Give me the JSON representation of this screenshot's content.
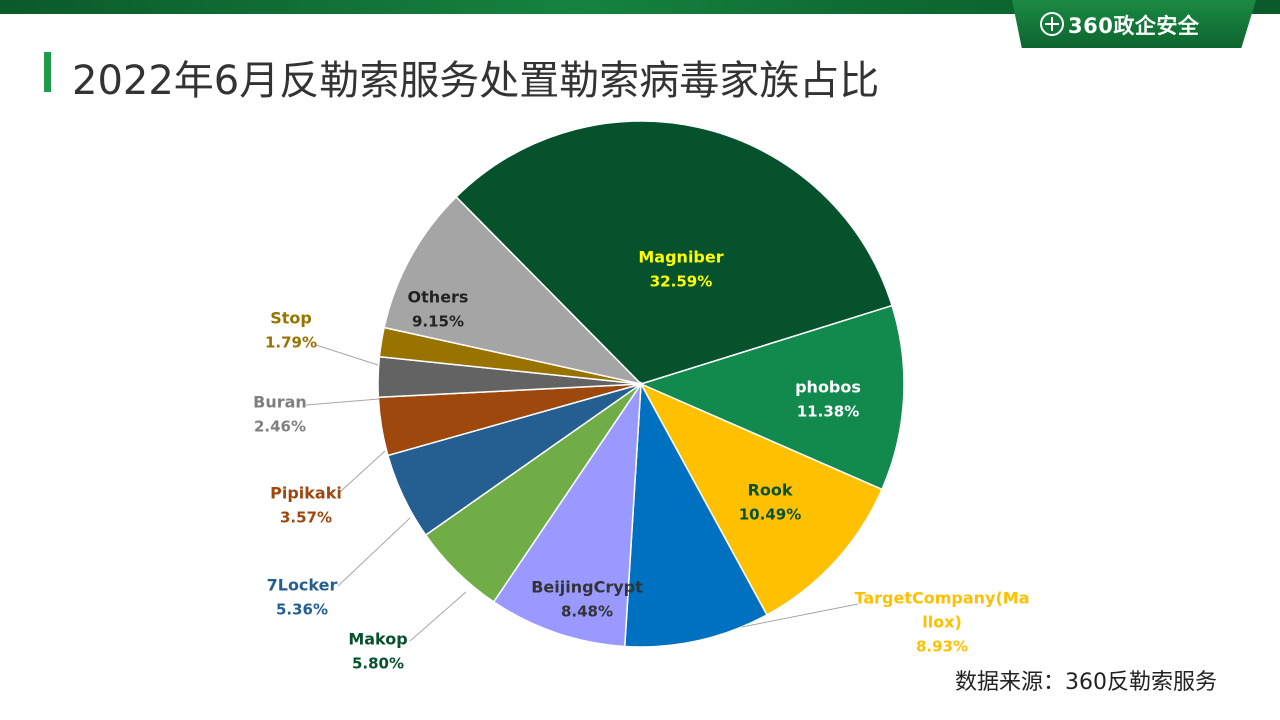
{
  "header": {
    "brand": "360政企安全",
    "title": "2022年6月反勒索服务处置勒索病毒家族占比"
  },
  "source": "数据来源：360反勒索服务",
  "colors": {
    "brand_green": "#15833f",
    "accent": "#1e9a4a"
  },
  "chart_data": {
    "type": "pie",
    "unit": "%",
    "slices": [
      {
        "label": "Magniber",
        "value": 32.59,
        "value_text": "32.59%",
        "color": "#05522d",
        "label_color": "#ffff00"
      },
      {
        "label": "phobos",
        "value": 11.38,
        "value_text": "11.38%",
        "color": "#128a4e",
        "label_color": "#ffffff"
      },
      {
        "label": "Rook",
        "value": 10.49,
        "value_text": "10.49%",
        "color": "#ffc000",
        "label_color": "#05522d"
      },
      {
        "label": "TargetCompany(Ma llox)",
        "label_lines": [
          "TargetCompany(Ma",
          "llox)"
        ],
        "value": 8.93,
        "value_text": "8.93%",
        "color": "#0070c0",
        "label_color": "#ffc000"
      },
      {
        "label": "BeijingCrypt",
        "value": 8.48,
        "value_text": "8.48%",
        "color": "#9999ff",
        "label_color": "#333333"
      },
      {
        "label": "Makop",
        "value": 5.8,
        "value_text": "5.80%",
        "color": "#70ad47",
        "label_color": "#05522d"
      },
      {
        "label": "7Locker",
        "value": 5.36,
        "value_text": "5.36%",
        "color": "#255e91",
        "label_color": "#255e91"
      },
      {
        "label": "Pipikaki",
        "value": 3.57,
        "value_text": "3.57%",
        "color": "#9e480e",
        "label_color": "#9e480e"
      },
      {
        "label": "Buran",
        "value": 2.46,
        "value_text": "2.46%",
        "color": "#636363",
        "label_color": "#7f7f7f"
      },
      {
        "label": "Stop",
        "value": 1.79,
        "value_text": "1.79%",
        "color": "#997300",
        "label_color": "#997300"
      },
      {
        "label": "Others",
        "value": 9.15,
        "value_text": "9.15%",
        "color": "#a5a5a5",
        "label_color": "#222222"
      }
    ]
  }
}
